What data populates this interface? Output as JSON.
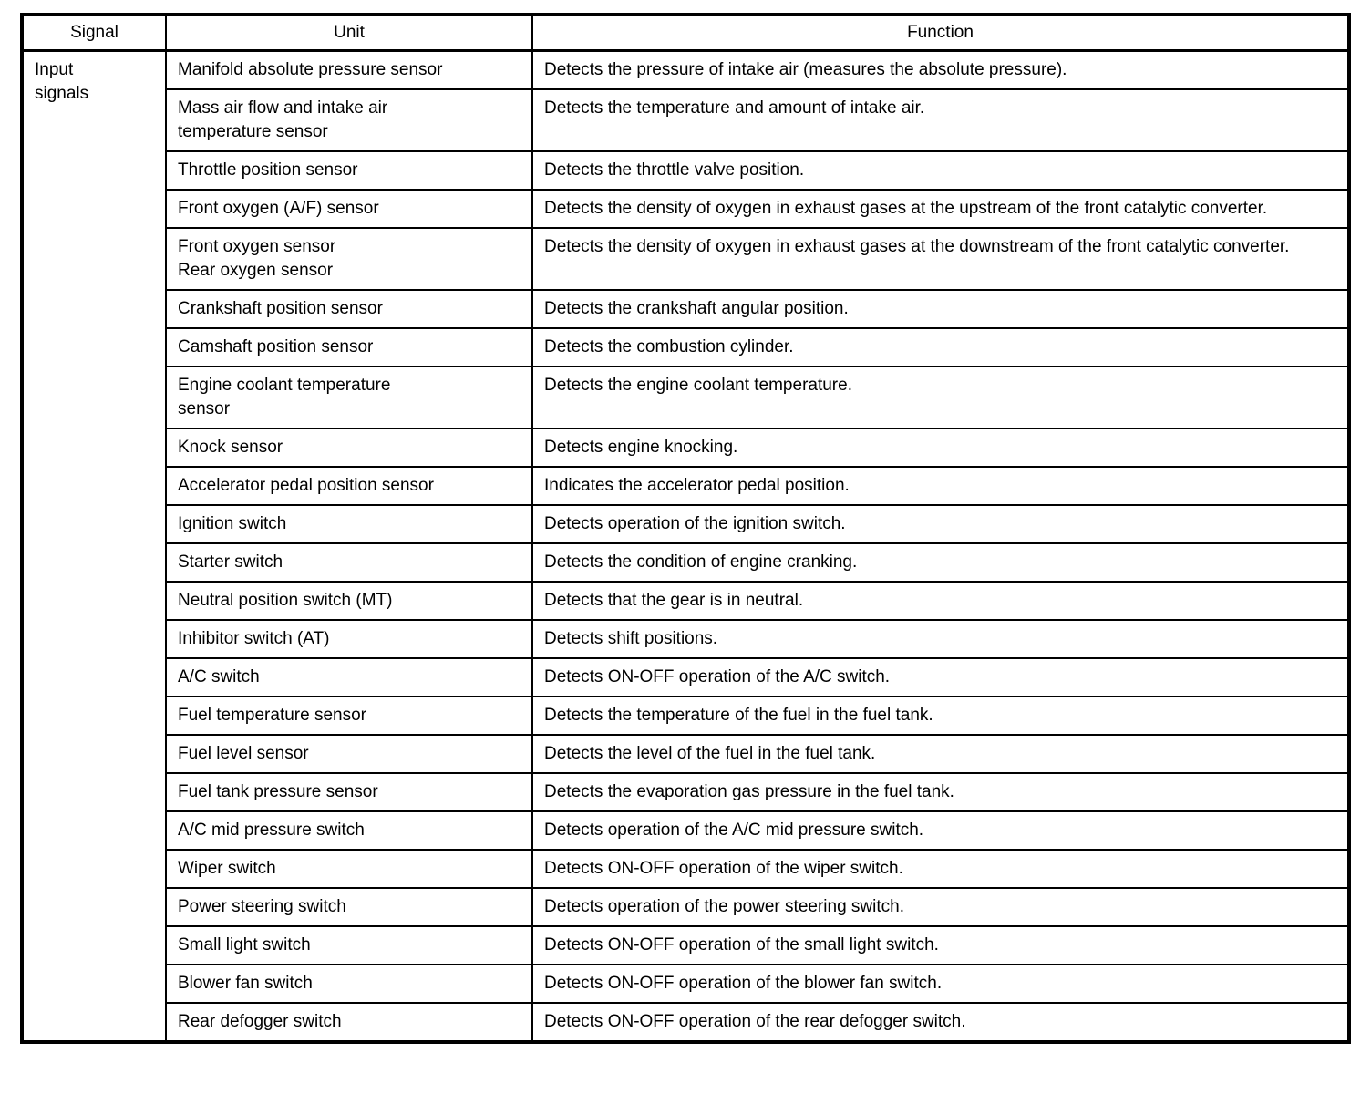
{
  "table": {
    "headers": [
      "Signal",
      "Unit",
      "Function"
    ],
    "signal_group": "Input\nsignals",
    "rows": [
      {
        "unit": "Manifold absolute pressure sensor",
        "function": "Detects the pressure of intake air (measures the absolute pressure)."
      },
      {
        "unit": "Mass air flow and intake air\ntemperature sensor",
        "function": "Detects the temperature and amount of intake air."
      },
      {
        "unit": "Throttle position sensor",
        "function": "Detects the throttle valve position."
      },
      {
        "unit": "Front oxygen (A/F) sensor",
        "function": "Detects the density of oxygen in exhaust gases at the upstream of the front catalytic converter."
      },
      {
        "unit": "Front oxygen sensor\nRear oxygen sensor",
        "function": "Detects the density of oxygen in exhaust gases at the downstream of the front catalytic converter."
      },
      {
        "unit": "Crankshaft position sensor",
        "function": "Detects the crankshaft angular position."
      },
      {
        "unit": "Camshaft position sensor",
        "function": "Detects the combustion cylinder."
      },
      {
        "unit": "Engine coolant temperature\nsensor",
        "function": "Detects the engine coolant temperature."
      },
      {
        "unit": "Knock sensor",
        "function": "Detects engine knocking."
      },
      {
        "unit": "Accelerator pedal position sensor",
        "function": "Indicates the accelerator pedal position."
      },
      {
        "unit": "Ignition switch",
        "function": "Detects operation of the ignition switch."
      },
      {
        "unit": "Starter switch",
        "function": "Detects the condition of engine cranking."
      },
      {
        "unit": "Neutral position switch (MT)",
        "function": "Detects that the gear is in neutral."
      },
      {
        "unit": "Inhibitor switch (AT)",
        "function": "Detects shift positions."
      },
      {
        "unit": "A/C switch",
        "function": "Detects ON-OFF operation of the A/C switch."
      },
      {
        "unit": "Fuel temperature sensor",
        "function": "Detects the temperature of the fuel in the fuel tank."
      },
      {
        "unit": "Fuel level sensor",
        "function": "Detects the level of the fuel in the fuel tank."
      },
      {
        "unit": "Fuel tank pressure sensor",
        "function": "Detects the evaporation gas pressure in the fuel tank."
      },
      {
        "unit": "A/C mid pressure switch",
        "function": "Detects operation of the A/C mid pressure switch."
      },
      {
        "unit": "Wiper switch",
        "function": "Detects ON-OFF operation of the wiper switch."
      },
      {
        "unit": "Power steering switch",
        "function": "Detects operation of the power steering switch."
      },
      {
        "unit": "Small light switch",
        "function": "Detects ON-OFF operation of the small light switch."
      },
      {
        "unit": "Blower fan switch",
        "function": "Detects ON-OFF operation of the blower fan switch."
      },
      {
        "unit": "Rear defogger switch",
        "function": "Detects ON-OFF operation of the rear defogger switch."
      }
    ]
  }
}
